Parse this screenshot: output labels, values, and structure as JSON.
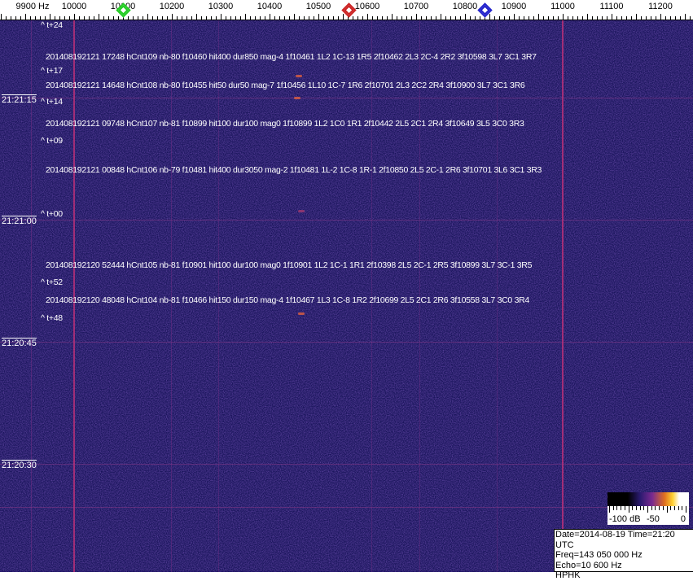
{
  "frequency_axis": {
    "unit_label": "9900 Hz",
    "labels": [
      "10000",
      "10100",
      "10200",
      "10300",
      "10400",
      "10500",
      "10600",
      "10700",
      "10800",
      "10900",
      "11000",
      "11100",
      "11200"
    ],
    "markers": [
      {
        "name": "green-marker",
        "freq_hz": 10100,
        "color": "#22cc22"
      },
      {
        "name": "red-marker",
        "freq_hz": 10562,
        "color": "#cc2222"
      },
      {
        "name": "blue-marker",
        "freq_hz": 10840,
        "color": "#2222cc"
      }
    ]
  },
  "time_labels": [
    "21:21:15",
    "21:21:00",
    "21:20:45",
    "21:20:30"
  ],
  "offset_marks": [
    "^ t+24",
    "^ t+17",
    "^ t+14",
    "^ t+09",
    "^ t+00",
    "^ t+52",
    "^ t+48"
  ],
  "detections": [
    "201408192121 17248 hCnt109 nb-80 f10460 hit400 dur850 mag-4 1f10461 1L2 1C-13 1R5 2f10462 2L3 2C-4 2R2 3f10598 3L7 3C1 3R7",
    "201408192121 14648 hCnt108 nb-80 f10455 hit50 dur50 mag-7 1f10456 1L10 1C-7 1R6 2f10701 2L3 2C2 2R4 3f10900 3L7 3C1 3R6",
    "201408192121 09748 hCnt107 nb-81 f10899 hit100 dur100 mag0 1f10899 1L2 1C0 1R1 2f10442 2L5 2C1 2R4 3f10649 3L5 3C0 3R3",
    "201408192121 00848 hCnt106 nb-79 f10481 hit400 dur3050 mag-2 1f10481 1L-2 1C-8 1R-1 2f10850 2L5 2C-1 2R6 3f10701 3L6 3C1 3R3",
    "201408192120 52444 hCnt105 nb-81 f10901 hit100 dur100 mag0 1f10901 1L2 1C-1 1R1 2f10398 2L5 2C-1 2R5 3f10899 3L7 3C-1 3R5",
    "201408192120 48048 hCnt104 nb-81 f10466 hit150 dur150 mag-4 1f10467 1L3 1C-8 1R2 2f10699 2L5 2C1 2R6 3f10558 3L7 3C0 3R4"
  ],
  "color_scale": {
    "labels": [
      "-100 dB",
      "-50",
      "0"
    ]
  },
  "info": {
    "date_time": "Date=2014-08-19 Time=21:20 UTC",
    "freq": "Freq=143 050 000 Hz",
    "echo": "Echo=10 600 Hz",
    "station": "HPHK"
  },
  "colors": {
    "background": "#1c1760",
    "reference_line": "#c03070"
  }
}
